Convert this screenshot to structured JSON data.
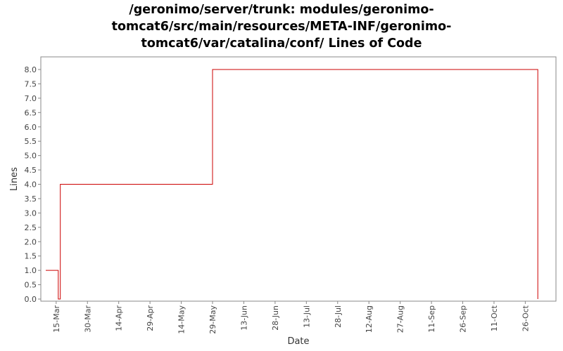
{
  "chart_data": {
    "type": "line",
    "title": "/geronimo/server/trunk: modules/geronimo-tomcat6/src/main/resources/META-INF/geronimo-tomcat6/var/catalina/conf/ Lines of Code",
    "title_lines": [
      "/geronimo/server/trunk: modules/geronimo-",
      "tomcat6/src/main/resources/META-INF/geronimo-",
      "tomcat6/var/catalina/conf/ Lines of Code"
    ],
    "xlabel": "Date",
    "ylabel": "Lines",
    "ylim": [
      0,
      8.2
    ],
    "y_ticks": [
      "0.0",
      "0.5",
      "1.0",
      "1.5",
      "2.0",
      "2.5",
      "3.0",
      "3.5",
      "4.0",
      "4.5",
      "5.0",
      "5.5",
      "6.0",
      "6.5",
      "7.0",
      "7.5",
      "8.0"
    ],
    "x_ticks": [
      "15-Mar",
      "30-Mar",
      "14-Apr",
      "29-Apr",
      "14-May",
      "29-May",
      "13-Jun",
      "28-Jun",
      "13-Jul",
      "28-Jul",
      "12-Aug",
      "27-Aug",
      "11-Sep",
      "26-Sep",
      "11-Oct",
      "26-Oct"
    ],
    "x_range": [
      "10-Mar",
      "6-Nov"
    ],
    "grid": false,
    "step": true,
    "series": [
      {
        "color": "#cc0000",
        "points": [
          {
            "x": "10-Mar",
            "y": 1
          },
          {
            "x": "16-Mar",
            "y": 1
          },
          {
            "x": "16-Mar",
            "y": 0
          },
          {
            "x": "17-Mar",
            "y": 0
          },
          {
            "x": "17-Mar",
            "y": 4
          },
          {
            "x": "29-May",
            "y": 4
          },
          {
            "x": "29-May",
            "y": 8
          },
          {
            "x": "1-Nov",
            "y": 8
          },
          {
            "x": "1-Nov",
            "y": 0
          }
        ]
      }
    ]
  }
}
